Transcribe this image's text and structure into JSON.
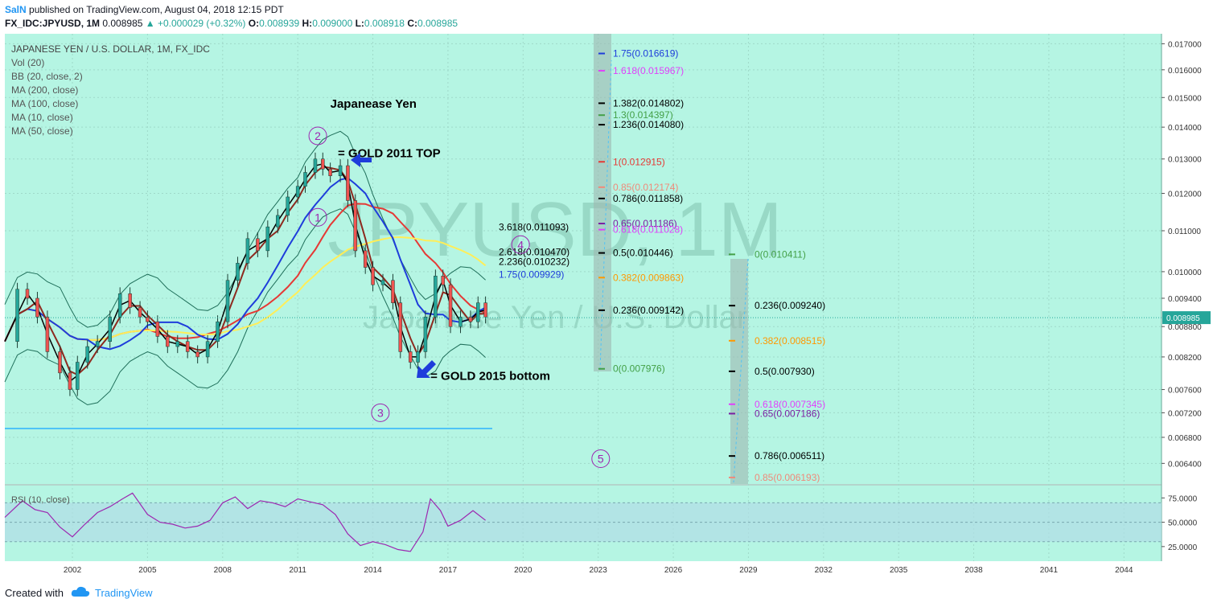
{
  "header": {
    "author": "SalN",
    "published": "published on TradingView.com, August 04, 2018 12:15 PDT",
    "symbol_line": "FX_IDC:JPYUSD, 1M",
    "last": "0.008985",
    "change": "▲ +0.000029 (+0.32%)",
    "o_label": "O:",
    "o": "0.008939",
    "h_label": "H:",
    "h": "0.009000",
    "l_label": "L:",
    "l": "0.008918",
    "c_label": "C:",
    "c": "0.008985"
  },
  "footer": {
    "created": "Created with",
    "brand": "TradingView"
  },
  "colors": {
    "bg": "#b5f5e3",
    "grid": "#9fd9c9",
    "up": "#26a69a",
    "down": "#ef5350",
    "bb": "#1f6f5a",
    "ma200": "#e53935",
    "ma100": "#ffee58",
    "ma10": "#000000",
    "ma50": "#8d2a1f",
    "ma20blue": "#1e3ddb",
    "rsi": "#9c27b0",
    "rsiband": "#b0dde6"
  },
  "chart_data": [
    {
      "type": "line",
      "title": "JAPANESE YEN / U.S. DOLLAR, 1M, FX_IDC",
      "watermark": "JPYUSD, 1M",
      "watermark_sub": "Japanese Yen / U.S. Dollar",
      "indicators": [
        "Vol (20)",
        "BB (20, close, 2)",
        "MA (200, close)",
        "MA (100, close)",
        "MA (10, close)",
        "MA (50, close)"
      ],
      "ylim": [
        0.0061,
        0.0174
      ],
      "yscale": "log",
      "y_ticks": [
        "0.017000",
        "0.016000",
        "0.015000",
        "0.014000",
        "0.013000",
        "0.012000",
        "0.011000",
        "0.010000",
        "0.009400",
        "0.008800",
        "0.008200",
        "0.007600",
        "0.007200",
        "0.006800",
        "0.006400"
      ],
      "y_tick_values": [
        0.017,
        0.016,
        0.015,
        0.014,
        0.013,
        0.012,
        0.011,
        0.01,
        0.0094,
        0.0088,
        0.0082,
        0.0076,
        0.0072,
        0.0068,
        0.0064
      ],
      "x_ticks": [
        "2002",
        "2005",
        "2008",
        "2011",
        "2014",
        "2017",
        "2020",
        "2023",
        "2026",
        "2029",
        "2032",
        "2035",
        "2038",
        "2041",
        "2044"
      ],
      "x_tick_years": [
        2002,
        2005,
        2008,
        2011,
        2014,
        2017,
        2020,
        2023,
        2026,
        2029,
        2032,
        2035,
        2038,
        2041,
        2044
      ],
      "xlim": [
        1999.3,
        2045.5
      ],
      "last_price_label": "0.008985",
      "last_price": 0.008985,
      "price_series": {
        "x": [
          1999.3,
          1999.8,
          2000.2,
          2000.6,
          2001.0,
          2001.5,
          2001.9,
          2002.2,
          2002.6,
          2003.0,
          2003.5,
          2003.9,
          2004.3,
          2004.7,
          2005.0,
          2005.4,
          2005.8,
          2006.2,
          2006.6,
          2007.0,
          2007.4,
          2007.8,
          2008.2,
          2008.6,
          2009.0,
          2009.4,
          2009.8,
          2010.2,
          2010.6,
          2011.0,
          2011.3,
          2011.7,
          2012.0,
          2012.3,
          2012.7,
          2013.0,
          2013.3,
          2013.7,
          2014.0,
          2014.4,
          2014.8,
          2015.1,
          2015.5,
          2015.8,
          2016.1,
          2016.5,
          2016.8,
          2017.1,
          2017.5,
          2017.9,
          2018.2,
          2018.5
        ],
        "y": [
          0.0085,
          0.0096,
          0.0094,
          0.009,
          0.0083,
          0.0079,
          0.0076,
          0.0081,
          0.0084,
          0.0085,
          0.009,
          0.0095,
          0.0092,
          0.009,
          0.0089,
          0.0086,
          0.0084,
          0.0085,
          0.0083,
          0.0082,
          0.0085,
          0.0089,
          0.0098,
          0.0102,
          0.0108,
          0.0105,
          0.0111,
          0.0114,
          0.0119,
          0.0122,
          0.0126,
          0.013,
          0.0127,
          0.0125,
          0.0128,
          0.0118,
          0.0105,
          0.0101,
          0.0097,
          0.0098,
          0.0093,
          0.0083,
          0.0081,
          0.0083,
          0.009,
          0.0099,
          0.0097,
          0.0088,
          0.009,
          0.0089,
          0.0093,
          0.009
        ]
      },
      "annotations": [
        {
          "text": "Japanease Yen",
          "x": 2012.3,
          "y": 0.01465
        },
        {
          "text": "= GOLD 2011 TOP",
          "x": 2012.6,
          "y": 0.01305
        },
        {
          "text": "= GOLD 2015 bottom",
          "x": 2016.3,
          "y": 0.00777
        }
      ],
      "wave_labels": [
        {
          "text": "2",
          "x": 2011.8,
          "y": 0.01372
        },
        {
          "text": "1",
          "x": 2011.8,
          "y": 0.01135
        },
        {
          "text": "3",
          "x": 2014.3,
          "y": 0.0072
        },
        {
          "text": "4",
          "x": 2019.9,
          "y": 0.01065
        },
        {
          "text": "5",
          "x": 2023.1,
          "y": 0.00647
        }
      ],
      "fib_levels_a": [
        {
          "text": "1.75(0.016619)",
          "y": 0.016619,
          "color": "#1e3ddb"
        },
        {
          "text": "1.618(0.015967)",
          "y": 0.015967,
          "color": "#e040fb"
        },
        {
          "text": "1.382(0.014802)",
          "y": 0.014802,
          "color": "#000000"
        },
        {
          "text": "1.3(0.014397)",
          "y": 0.014397,
          "color": "#43a047"
        },
        {
          "text": "1.236(0.014080)",
          "y": 0.01408,
          "color": "#000000"
        },
        {
          "text": "1(0.012915)",
          "y": 0.012915,
          "color": "#e53935"
        },
        {
          "text": "0.85(0.012174)",
          "y": 0.012174,
          "color": "#ef8a7a"
        },
        {
          "text": "0.786(0.011858)",
          "y": 0.011858,
          "color": "#000000"
        },
        {
          "text": "0.65(0.011186)",
          "y": 0.011186,
          "color": "#7b1fa2"
        },
        {
          "text": "0.618(0.011028)",
          "y": 0.011028,
          "color": "#e040fb"
        },
        {
          "text": "0.5(0.010446)",
          "y": 0.010446,
          "color": "#000000"
        },
        {
          "text": "0.382(0.009863)",
          "y": 0.009863,
          "color": "#ff9800"
        },
        {
          "text": "0.236(0.009142)",
          "y": 0.009142,
          "color": "#000000"
        },
        {
          "text": "0(0.007976)",
          "y": 0.007976,
          "color": "#43a047"
        }
      ],
      "fib_levels_b": [
        {
          "text": "0(0.010411)",
          "y": 0.010411,
          "color": "#43a047"
        },
        {
          "text": "0.236(0.009240)",
          "y": 0.00924,
          "color": "#000000"
        },
        {
          "text": "0.382(0.008515)",
          "y": 0.008515,
          "color": "#ff9800"
        },
        {
          "text": "0.5(0.007930)",
          "y": 0.00793,
          "color": "#000000"
        },
        {
          "text": "0.618(0.007345)",
          "y": 0.007345,
          "color": "#e040fb"
        },
        {
          "text": "0.65(0.007186)",
          "y": 0.007186,
          "color": "#7b1fa2"
        },
        {
          "text": "0.786(0.006511)",
          "y": 0.006511,
          "color": "#000000"
        },
        {
          "text": "0.85(0.006193)",
          "y": 0.006193,
          "color": "#ef8a7a"
        }
      ],
      "fib_ext_c": [
        {
          "text": "3.618(0.011093)",
          "y": 0.011093,
          "color": "#000000"
        },
        {
          "text": "2.618(0.010470)",
          "y": 0.01047,
          "color": "#000000"
        },
        {
          "text": "2.236(0.010232)",
          "y": 0.010232,
          "color": "#000000"
        },
        {
          "text": "1.75(0.009929)",
          "y": 0.009929,
          "color": "#1e3ddb"
        }
      ]
    },
    {
      "type": "line",
      "title": "RSI (10, close)",
      "ylim": [
        10,
        86
      ],
      "y_ticks": [
        "75.0000",
        "50.0000",
        "25.0000"
      ],
      "y_tick_values": [
        75,
        50,
        25
      ],
      "band": [
        30,
        70
      ],
      "x": [
        1999.3,
        2000.0,
        2000.5,
        2001.0,
        2001.5,
        2002.0,
        2002.5,
        2003.0,
        2003.5,
        2004.0,
        2004.4,
        2005.0,
        2005.5,
        2006.0,
        2006.5,
        2007.0,
        2007.5,
        2008.0,
        2008.5,
        2009.0,
        2009.5,
        2010.0,
        2010.5,
        2011.0,
        2011.5,
        2012.0,
        2012.5,
        2013.0,
        2013.5,
        2014.0,
        2014.5,
        2015.0,
        2015.5,
        2016.0,
        2016.3,
        2016.7,
        2017.0,
        2017.5,
        2018.0,
        2018.5
      ],
      "y": [
        55,
        72,
        63,
        60,
        45,
        35,
        48,
        60,
        66,
        74,
        80,
        58,
        50,
        48,
        44,
        46,
        52,
        70,
        76,
        64,
        72,
        70,
        66,
        74,
        71,
        68,
        58,
        38,
        26,
        30,
        27,
        22,
        20,
        40,
        74,
        62,
        46,
        52,
        62,
        52
      ]
    }
  ]
}
